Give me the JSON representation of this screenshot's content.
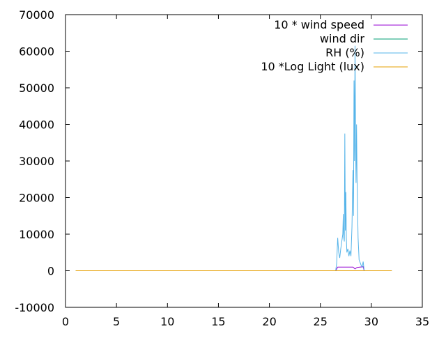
{
  "chart_data": {
    "type": "line",
    "title": "",
    "xlabel": "",
    "ylabel": "",
    "xlim": [
      0,
      35
    ],
    "ylim": [
      -10000,
      70000
    ],
    "x_ticks": [
      0,
      5,
      10,
      15,
      20,
      25,
      30,
      35
    ],
    "x_tick_labels": [
      "0",
      "5",
      "10",
      "15",
      "20",
      "25",
      "30",
      "35"
    ],
    "y_ticks": [
      -10000,
      0,
      10000,
      20000,
      30000,
      40000,
      50000,
      60000,
      70000
    ],
    "y_tick_labels": [
      "-10000",
      "0",
      "10000",
      "20000",
      "30000",
      "40000",
      "50000",
      "60000",
      "70000"
    ],
    "grid": false,
    "legend_position": "top-right",
    "series": [
      {
        "name": "10 * wind speed",
        "color": "#9400d3",
        "points": [
          [
            1,
            0
          ],
          [
            5,
            0
          ],
          [
            10,
            0
          ],
          [
            15,
            0
          ],
          [
            20,
            0
          ],
          [
            25,
            0
          ],
          [
            26.5,
            0
          ],
          [
            26.7,
            1000
          ],
          [
            27.5,
            1000
          ],
          [
            28.2,
            1000
          ],
          [
            28.4,
            500
          ],
          [
            28.6,
            900
          ],
          [
            29.2,
            1100
          ],
          [
            29.3,
            0
          ],
          [
            30,
            0
          ],
          [
            32,
            0
          ]
        ]
      },
      {
        "name": "wind dir",
        "color": "#009e73",
        "points": [
          [
            1,
            0
          ],
          [
            5,
            0
          ],
          [
            10,
            0
          ],
          [
            15,
            0
          ],
          [
            20,
            0
          ],
          [
            25,
            0
          ],
          [
            30,
            0
          ],
          [
            32,
            0
          ]
        ]
      },
      {
        "name": "RH (%)",
        "color": "#56b4e9",
        "points": [
          [
            1,
            0
          ],
          [
            5,
            0
          ],
          [
            10,
            0
          ],
          [
            15,
            0
          ],
          [
            20,
            0
          ],
          [
            25,
            0
          ],
          [
            26.5,
            0
          ],
          [
            26.6,
            2000
          ],
          [
            26.7,
            9000
          ],
          [
            26.8,
            5000
          ],
          [
            26.9,
            3500
          ],
          [
            27.0,
            6000
          ],
          [
            27.1,
            8000
          ],
          [
            27.2,
            10000
          ],
          [
            27.25,
            15500
          ],
          [
            27.3,
            9000
          ],
          [
            27.35,
            8000
          ],
          [
            27.4,
            37500
          ],
          [
            27.45,
            11000
          ],
          [
            27.5,
            21500
          ],
          [
            27.55,
            9000
          ],
          [
            27.6,
            5000
          ],
          [
            27.7,
            6000
          ],
          [
            27.8,
            4000
          ],
          [
            27.9,
            5500
          ],
          [
            28.0,
            4000
          ],
          [
            28.1,
            12000
          ],
          [
            28.15,
            20000
          ],
          [
            28.2,
            27500
          ],
          [
            28.25,
            15000
          ],
          [
            28.3,
            52000
          ],
          [
            28.35,
            30000
          ],
          [
            28.4,
            61500
          ],
          [
            28.45,
            38000
          ],
          [
            28.5,
            24000
          ],
          [
            28.55,
            40000
          ],
          [
            28.6,
            25000
          ],
          [
            28.7,
            9000
          ],
          [
            28.8,
            3000
          ],
          [
            29.0,
            1500
          ],
          [
            29.1,
            1000
          ],
          [
            29.2,
            2500
          ],
          [
            29.3,
            0
          ],
          [
            30,
            0
          ],
          [
            32,
            0
          ]
        ]
      },
      {
        "name": "10 *Log Light (lux)",
        "color": "#e69f00",
        "points": [
          [
            1,
            0
          ],
          [
            5,
            0
          ],
          [
            10,
            0
          ],
          [
            15,
            0
          ],
          [
            20,
            0
          ],
          [
            25,
            0
          ],
          [
            30,
            0
          ],
          [
            32,
            0
          ]
        ]
      }
    ]
  }
}
